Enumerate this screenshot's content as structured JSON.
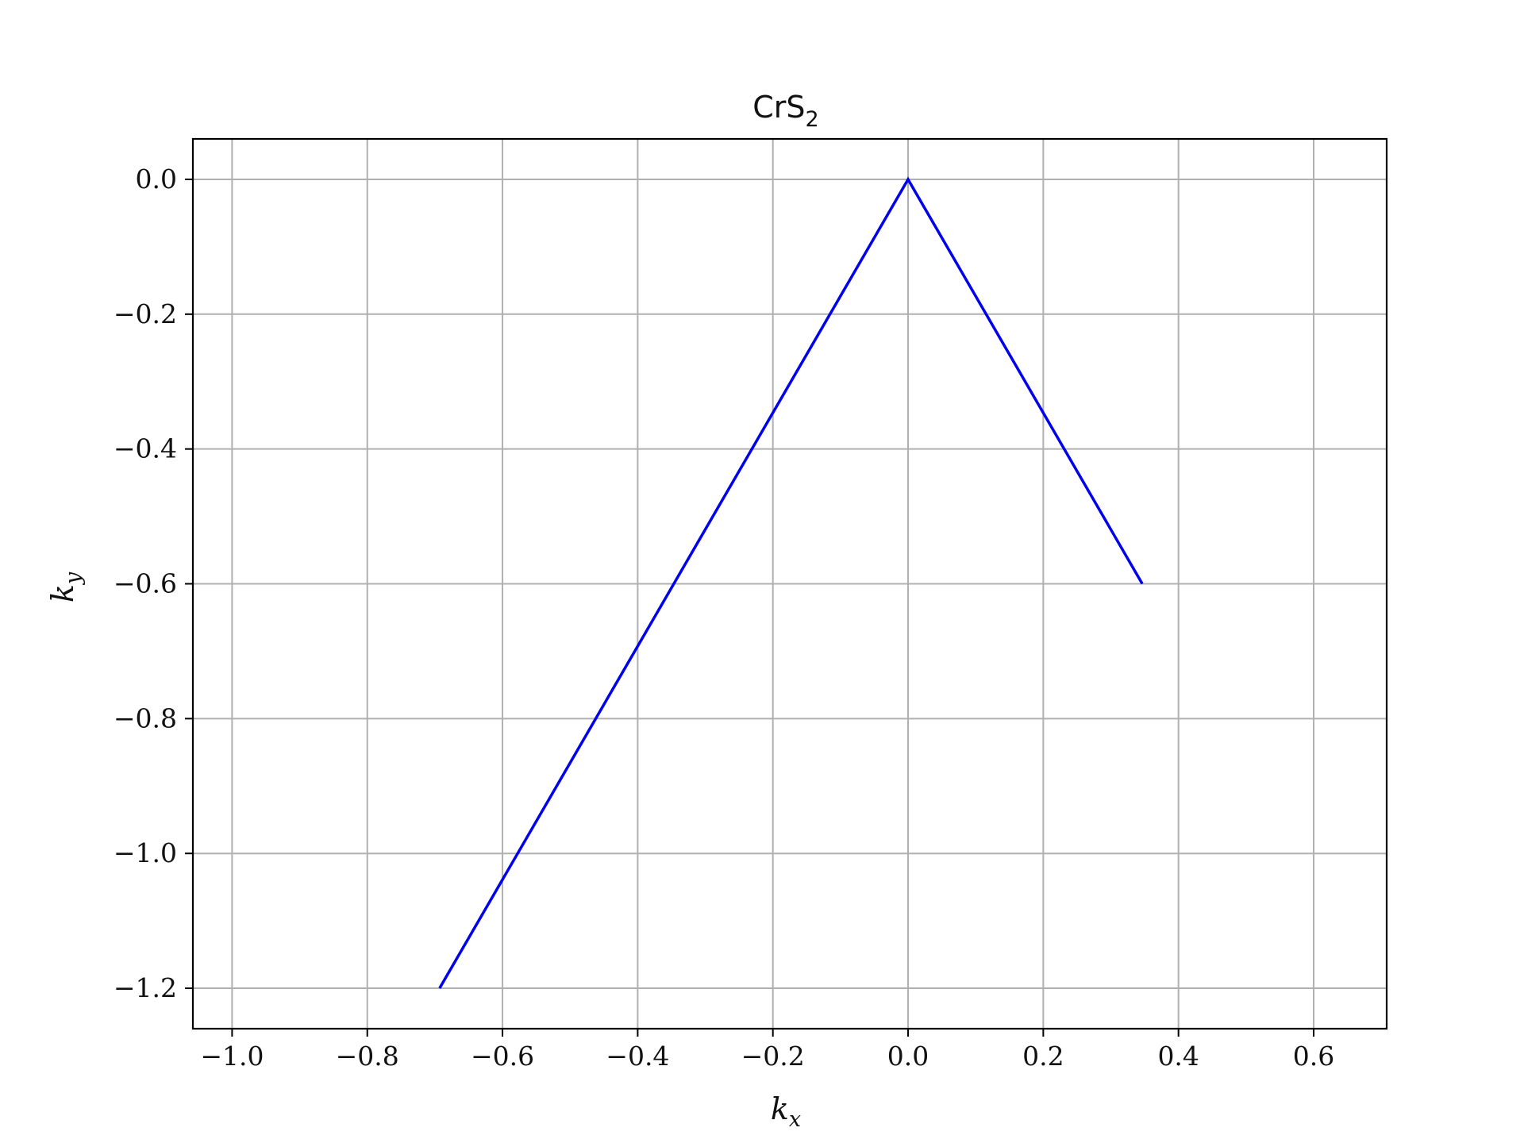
{
  "chart_data": {
    "type": "line",
    "title": "CrS",
    "title_subscript": "2",
    "xlabel": "k",
    "xlabel_subscript": "x",
    "ylabel": "k",
    "ylabel_subscript": "y",
    "xlim": [
      -1.058,
      0.708
    ],
    "ylim": [
      -1.26,
      0.06
    ],
    "xticks": [
      -1.0,
      -0.8,
      -0.6,
      -0.4,
      -0.2,
      0.0,
      0.2,
      0.4,
      0.6
    ],
    "xtick_labels": [
      "−1.0",
      "−0.8",
      "−0.6",
      "−0.4",
      "−0.2",
      "0.0",
      "0.2",
      "0.4",
      "0.6"
    ],
    "yticks": [
      0.0,
      -0.2,
      -0.4,
      -0.6,
      -0.8,
      -1.0,
      -1.2
    ],
    "ytick_labels": [
      "0.0",
      "−0.2",
      "−0.4",
      "−0.6",
      "−0.8",
      "−1.0",
      "−1.2"
    ],
    "grid": true,
    "series": [
      {
        "color": "#0000ee",
        "x": [
          -0.693,
          0.0,
          0.3465
        ],
        "y": [
          -1.2,
          0.0,
          -0.6
        ]
      }
    ]
  }
}
